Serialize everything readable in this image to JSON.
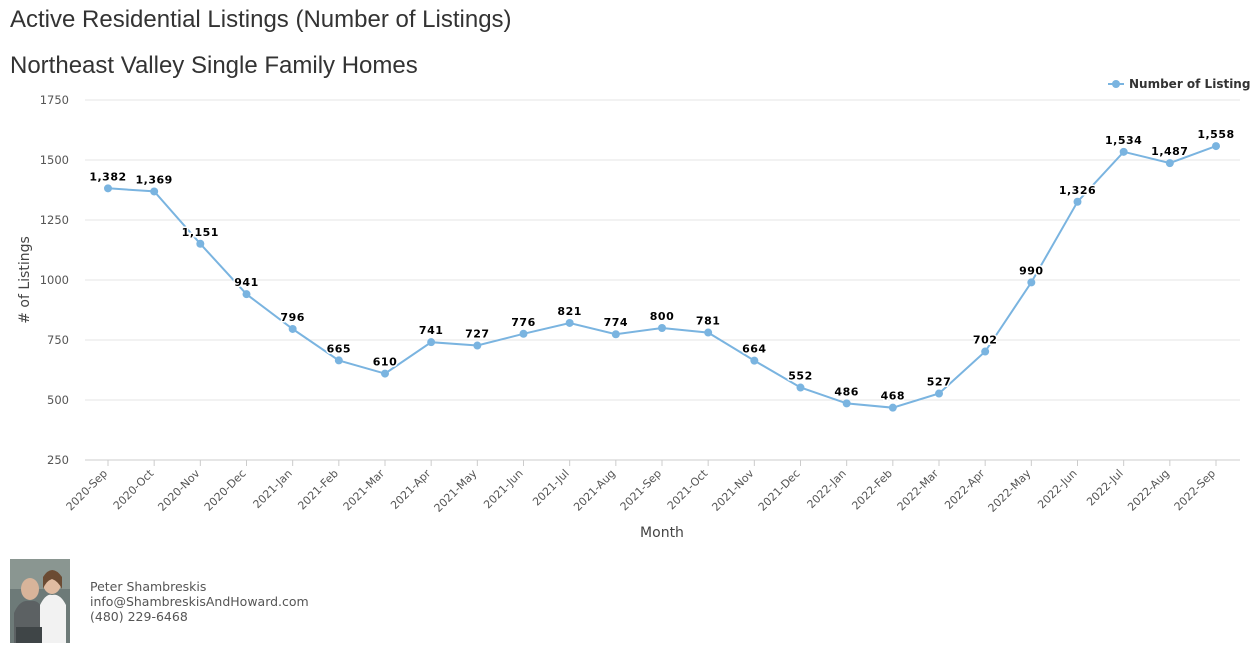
{
  "titles": {
    "main": "Active Residential Listings (Number of Listings)",
    "sub": "Northeast Valley Single Family Homes"
  },
  "agent": {
    "name": "Peter Shambreskis",
    "email": "info@ShambreskisAndHoward.com",
    "phone": "(480) 229-6468"
  },
  "chart_data": {
    "type": "line",
    "title": "Active Residential Listings (Number of Listings)",
    "subtitle": "Northeast Valley Single Family Homes",
    "xlabel": "Month",
    "ylabel": "# of Listings",
    "ylim": [
      250,
      1750
    ],
    "yticks": [
      250,
      500,
      750,
      1000,
      1250,
      1500,
      1750
    ],
    "grid": true,
    "legend_position": "top-right",
    "color": "#7ab4e0",
    "categories": [
      "2020-Sep",
      "2020-Oct",
      "2020-Nov",
      "2020-Dec",
      "2021-Jan",
      "2021-Feb",
      "2021-Mar",
      "2021-Apr",
      "2021-May",
      "2021-Jun",
      "2021-Jul",
      "2021-Aug",
      "2021-Sep",
      "2021-Oct",
      "2021-Nov",
      "2021-Dec",
      "2022-Jan",
      "2022-Feb",
      "2022-Mar",
      "2022-Apr",
      "2022-May",
      "2022-Jun",
      "2022-Jul",
      "2022-Aug",
      "2022-Sep"
    ],
    "series": [
      {
        "name": "Number of Listings",
        "values": [
          1382,
          1369,
          1151,
          941,
          796,
          665,
          610,
          741,
          727,
          776,
          821,
          774,
          800,
          781,
          664,
          552,
          486,
          468,
          527,
          702,
          990,
          1326,
          1534,
          1487,
          1558
        ],
        "labels": [
          "1,382",
          "1,369",
          "1,151",
          "941",
          "796",
          "665",
          "610",
          "741",
          "727",
          "776",
          "821",
          "774",
          "800",
          "781",
          "664",
          "552",
          "486",
          "468",
          "527",
          "702",
          "990",
          "1,326",
          "1,534",
          "1,487",
          "1,558"
        ]
      }
    ]
  }
}
